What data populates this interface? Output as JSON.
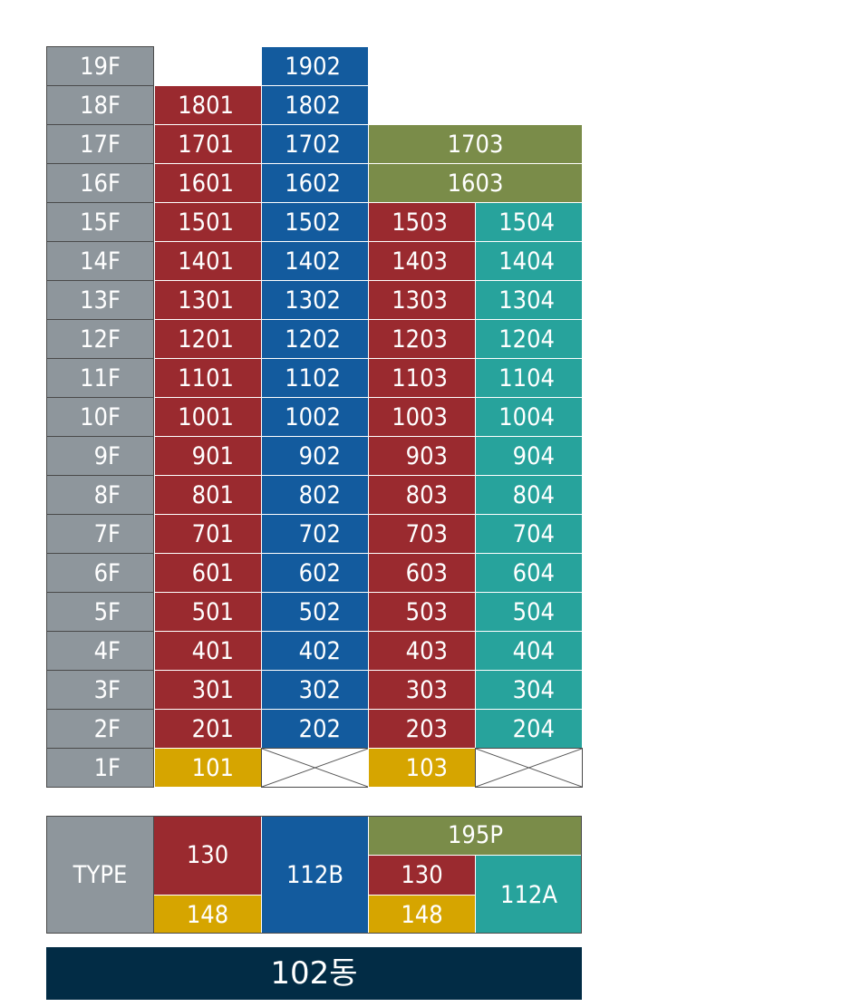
{
  "floors": [
    {
      "label": "19F",
      "units": [
        null,
        "1902",
        null,
        null
      ]
    },
    {
      "label": "18F",
      "units": [
        "1801",
        "1802",
        null,
        null
      ]
    },
    {
      "label": "17F",
      "units": [
        "1701",
        "1702",
        "1703",
        null
      ]
    },
    {
      "label": "16F",
      "units": [
        "1601",
        "1602",
        "1603",
        null
      ]
    },
    {
      "label": "15F",
      "units": [
        "1501",
        "1502",
        "1503",
        "1504"
      ]
    },
    {
      "label": "14F",
      "units": [
        "1401",
        "1402",
        "1403",
        "1404"
      ]
    },
    {
      "label": "13F",
      "units": [
        "1301",
        "1302",
        "1303",
        "1304"
      ]
    },
    {
      "label": "12F",
      "units": [
        "1201",
        "1202",
        "1203",
        "1204"
      ]
    },
    {
      "label": "11F",
      "units": [
        "1101",
        "1102",
        "1103",
        "1104"
      ]
    },
    {
      "label": "10F",
      "units": [
        "1001",
        "1002",
        "1003",
        "1004"
      ]
    },
    {
      "label": "9F",
      "units": [
        "901",
        "902",
        "903",
        "904"
      ]
    },
    {
      "label": "8F",
      "units": [
        "801",
        "802",
        "803",
        "804"
      ]
    },
    {
      "label": "7F",
      "units": [
        "701",
        "702",
        "703",
        "704"
      ]
    },
    {
      "label": "6F",
      "units": [
        "601",
        "602",
        "603",
        "604"
      ]
    },
    {
      "label": "5F",
      "units": [
        "501",
        "502",
        "503",
        "504"
      ]
    },
    {
      "label": "4F",
      "units": [
        "401",
        "402",
        "403",
        "404"
      ]
    },
    {
      "label": "3F",
      "units": [
        "301",
        "302",
        "303",
        "304"
      ]
    },
    {
      "label": "2F",
      "units": [
        "201",
        "202",
        "203",
        "204"
      ]
    },
    {
      "label": "1F",
      "units": [
        "101",
        null,
        "103",
        null
      ]
    }
  ],
  "legend": {
    "label": "TYPE",
    "t130a": "130",
    "t148a": "148",
    "t112b": "112B",
    "t195p": "195P",
    "t130b": "130",
    "t148b": "148",
    "t112a": "112A"
  },
  "building": "102동",
  "colors": {
    "type_130": "#9a2a2f",
    "type_112B": "#135b9e",
    "type_195P": "#7a8c49",
    "type_112A": "#27a39c",
    "type_148": "#d6a500",
    "floor_label": "#8e969c",
    "building_bar": "#022c45"
  }
}
